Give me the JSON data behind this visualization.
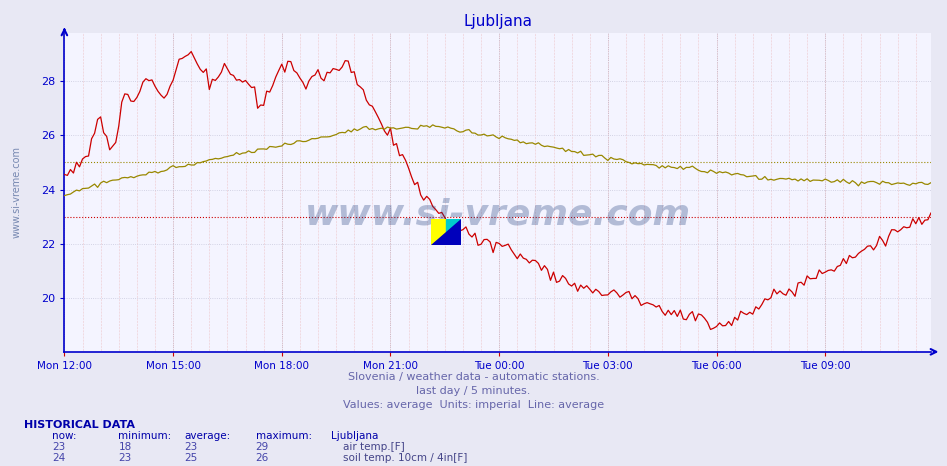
{
  "title": "Ljubljana",
  "title_color": "#0000cc",
  "bg_color": "#e8e8f4",
  "plot_bg_color": "#f4f4ff",
  "subtitle_color": "#6666aa",
  "hist_color": "#0000aa",
  "axis_color": "#0000cc",
  "tick_color": "#cc0000",
  "watermark": "www.si-vreme.com",
  "watermark_color": "#1a3a7a",
  "watermark_alpha": 0.3,
  "ymin": 18.0,
  "ymax": 29.8,
  "yticks": [
    20,
    22,
    24,
    26,
    28
  ],
  "xtick_labels": [
    "Mon 12:00",
    "Mon 15:00",
    "Mon 18:00",
    "Mon 21:00",
    "Tue 00:00",
    "Tue 03:00",
    "Tue 06:00",
    "Tue 09:00"
  ],
  "n_points": 288,
  "subtitle1": "Slovenia / weather data - automatic stations.",
  "subtitle2": "last day / 5 minutes.",
  "subtitle3": "Values: average  Units: imperial  Line: average",
  "hist_label": "HISTORICAL DATA",
  "col_headers": [
    "now:",
    "minimum:",
    "average:",
    "maximum:",
    "Ljubljana"
  ],
  "row1_vals": [
    "23",
    "18",
    "23",
    "29"
  ],
  "row1_label": "air temp.[F]",
  "row1_color": "#cc0000",
  "row2_vals": [
    "24",
    "23",
    "25",
    "26"
  ],
  "row2_label": "soil temp. 10cm / 4in[F]",
  "row2_color": "#998800",
  "air_avg": 23.0,
  "soil_avg": 25.0,
  "logo_left_color": "#ffff00",
  "logo_right_color": "#00cccc",
  "logo_tri_color": "#0000bb"
}
